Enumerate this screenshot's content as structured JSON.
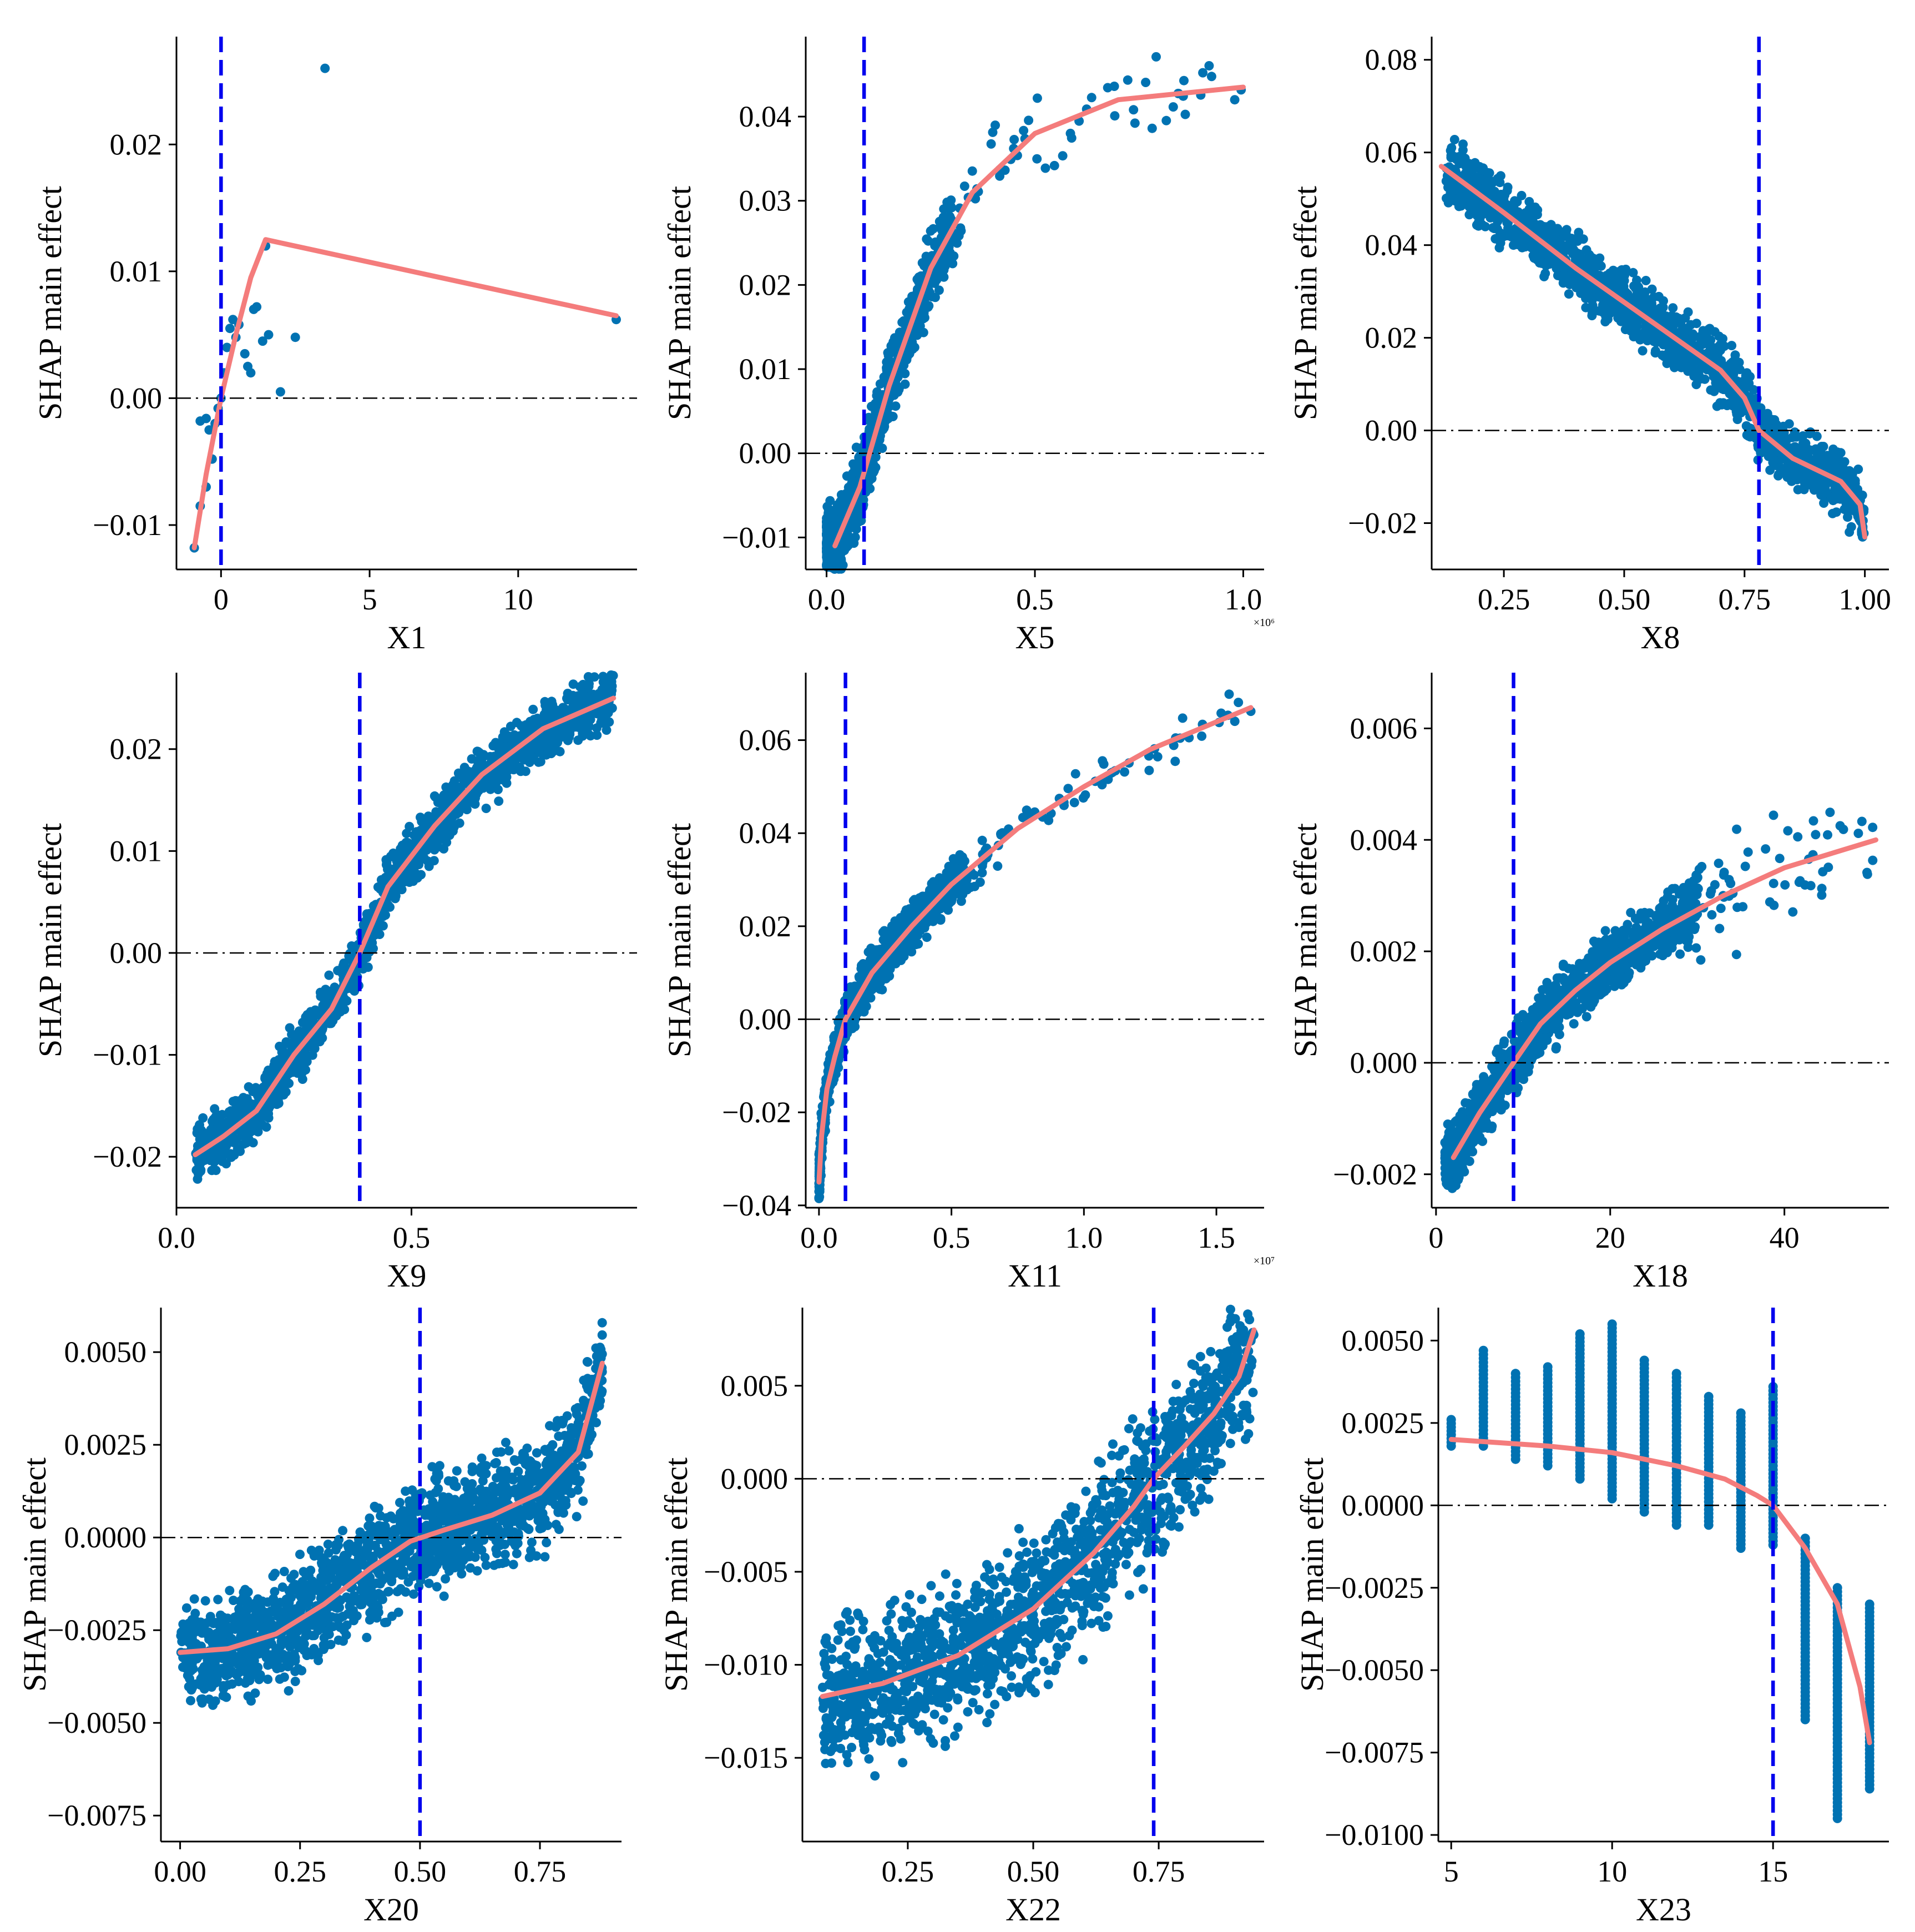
{
  "figure": {
    "colors": {
      "points": "#0072B2",
      "curve": "#F47C7C",
      "threshold": "#0000EE",
      "zero_line": "#000000",
      "axes": "#000000"
    }
  },
  "chart_data": [
    {
      "type": "scatter",
      "xlabel": "X1",
      "ylabel": "SHAP main effect",
      "xlim": [
        -1.5,
        14.0
      ],
      "ylim": [
        -0.0135,
        0.0285
      ],
      "xticks": [
        0,
        5,
        10
      ],
      "xtick_labels": [
        "0",
        "5",
        "10"
      ],
      "yticks": [
        -0.01,
        0.0,
        0.01,
        0.02
      ],
      "ytick_labels": [
        "−0.01",
        "0.00",
        "0.01",
        "0.02"
      ],
      "threshold_x": 0.0,
      "x_exponent": "",
      "curve": [
        [
          -0.9,
          -0.0118
        ],
        [
          -0.5,
          -0.006
        ],
        [
          0.0,
          0.0
        ],
        [
          0.5,
          0.005
        ],
        [
          1.0,
          0.0095
        ],
        [
          1.5,
          0.0125
        ],
        [
          13.3,
          0.0065
        ]
      ],
      "points": {
        "mode": "manual",
        "items": [
          [
            -0.9,
            -0.0118
          ],
          [
            -0.7,
            -0.0085
          ],
          [
            -0.5,
            -0.007
          ],
          [
            -0.7,
            -0.0018
          ],
          [
            -0.5,
            -0.0016
          ],
          [
            -0.4,
            -0.0025
          ],
          [
            -0.3,
            -0.0048
          ],
          [
            -0.2,
            -0.002
          ],
          [
            -0.1,
            -0.0008
          ],
          [
            0.0,
            0.0
          ],
          [
            0.1,
            0.002
          ],
          [
            0.2,
            0.004
          ],
          [
            0.3,
            0.0055
          ],
          [
            0.4,
            0.0062
          ],
          [
            0.5,
            0.0048
          ],
          [
            0.6,
            0.0058
          ],
          [
            0.8,
            0.0035
          ],
          [
            0.9,
            0.0025
          ],
          [
            1.0,
            0.002
          ],
          [
            1.1,
            0.007
          ],
          [
            1.2,
            0.0072
          ],
          [
            1.4,
            0.0045
          ],
          [
            1.5,
            0.012
          ],
          [
            1.6,
            0.005
          ],
          [
            2.0,
            0.0005
          ],
          [
            2.5,
            0.0048
          ],
          [
            3.5,
            0.026
          ],
          [
            13.3,
            0.0062
          ]
        ]
      }
    },
    {
      "type": "scatter",
      "xlabel": "X5",
      "ylabel": "SHAP main effect",
      "xlim": [
        -0.05,
        1.05
      ],
      "ylim": [
        -0.0138,
        0.0495
      ],
      "xticks": [
        0.0,
        0.5,
        1.0
      ],
      "xtick_labels": [
        "0.0",
        "0.5",
        "1.0"
      ],
      "yticks": [
        -0.01,
        0.0,
        0.01,
        0.02,
        0.03,
        0.04
      ],
      "ytick_labels": [
        "−0.01",
        "0.00",
        "0.01",
        "0.02",
        "0.03",
        "0.04"
      ],
      "threshold_x": 0.09,
      "x_exponent": "×10⁶",
      "curve": [
        [
          0.02,
          -0.011
        ],
        [
          0.08,
          -0.004
        ],
        [
          0.15,
          0.008
        ],
        [
          0.25,
          0.022
        ],
        [
          0.35,
          0.031
        ],
        [
          0.5,
          0.038
        ],
        [
          0.7,
          0.042
        ],
        [
          1.0,
          0.0435
        ]
      ],
      "points": {
        "mode": "band",
        "seed": 5,
        "count": 1300,
        "x_range": [
          0.0,
          0.3
        ],
        "x_power": 1.8,
        "spread": 0.0035,
        "tail": {
          "count": 60,
          "x_range": [
            0.3,
            1.0
          ],
          "x_power": 1.6,
          "spread": 0.004
        }
      }
    },
    {
      "type": "scatter",
      "xlabel": "X8",
      "ylabel": "SHAP main effect",
      "xlim": [
        0.1,
        1.05
      ],
      "ylim": [
        -0.03,
        0.085
      ],
      "xticks": [
        0.25,
        0.5,
        0.75,
        1.0
      ],
      "xtick_labels": [
        "0.25",
        "0.50",
        "0.75",
        "1.00"
      ],
      "yticks": [
        -0.02,
        0.0,
        0.02,
        0.04,
        0.06,
        0.08
      ],
      "ytick_labels": [
        "−0.02",
        "0.00",
        "0.02",
        "0.04",
        "0.06",
        "0.08"
      ],
      "threshold_x": 0.78,
      "x_exponent": "",
      "curve": [
        [
          0.12,
          0.057
        ],
        [
          0.25,
          0.047
        ],
        [
          0.4,
          0.035
        ],
        [
          0.55,
          0.024
        ],
        [
          0.7,
          0.013
        ],
        [
          0.75,
          0.007
        ],
        [
          0.78,
          0.0
        ],
        [
          0.85,
          -0.006
        ],
        [
          0.95,
          -0.011
        ],
        [
          0.99,
          -0.016
        ],
        [
          1.0,
          -0.023
        ]
      ],
      "points": {
        "mode": "band",
        "seed": 8,
        "count": 1500,
        "x_range": [
          0.13,
          1.0
        ],
        "x_power": 1.0,
        "spread": 0.0055,
        "clip_x": 1.0
      }
    },
    {
      "type": "scatter",
      "xlabel": "X9",
      "ylabel": "SHAP main effect",
      "xlim": [
        0.0,
        0.98
      ],
      "ylim": [
        -0.025,
        0.0275
      ],
      "xticks": [
        0.0,
        0.5
      ],
      "xtick_labels": [
        "0.0",
        "0.5"
      ],
      "yticks": [
        -0.02,
        -0.01,
        0.0,
        0.01,
        0.02
      ],
      "ytick_labels": [
        "−0.02",
        "−0.01",
        "0.00",
        "0.01",
        "0.02"
      ],
      "threshold_x": 0.39,
      "x_exponent": "",
      "curve": [
        [
          0.04,
          -0.0198
        ],
        [
          0.1,
          -0.018
        ],
        [
          0.17,
          -0.0155
        ],
        [
          0.25,
          -0.01
        ],
        [
          0.33,
          -0.0055
        ],
        [
          0.39,
          0.0
        ],
        [
          0.45,
          0.0065
        ],
        [
          0.55,
          0.0125
        ],
        [
          0.65,
          0.0175
        ],
        [
          0.78,
          0.022
        ],
        [
          0.93,
          0.025
        ]
      ],
      "points": {
        "mode": "band",
        "seed": 9,
        "count": 1500,
        "x_range": [
          0.04,
          0.93
        ],
        "x_power": 1.0,
        "spread": 0.0023
      }
    },
    {
      "type": "scatter",
      "xlabel": "X11",
      "ylabel": "SHAP main effect",
      "xlim": [
        -0.05,
        1.68
      ],
      "ylim": [
        -0.0405,
        0.0745
      ],
      "xticks": [
        0.0,
        0.5,
        1.0,
        1.5
      ],
      "xtick_labels": [
        "0.0",
        "0.5",
        "1.0",
        "1.5"
      ],
      "yticks": [
        -0.04,
        -0.02,
        0.0,
        0.02,
        0.04,
        0.06
      ],
      "ytick_labels": [
        "−0.04",
        "−0.02",
        "0.00",
        "0.02",
        "0.04",
        "0.06"
      ],
      "threshold_x": 0.1,
      "x_exponent": "×10⁷",
      "curve": [
        [
          0.0,
          -0.035
        ],
        [
          0.01,
          -0.025
        ],
        [
          0.03,
          -0.015
        ],
        [
          0.06,
          -0.008
        ],
        [
          0.1,
          0.0
        ],
        [
          0.2,
          0.01
        ],
        [
          0.35,
          0.02
        ],
        [
          0.5,
          0.029
        ],
        [
          0.75,
          0.041
        ],
        [
          1.0,
          0.05
        ],
        [
          1.25,
          0.058
        ],
        [
          1.63,
          0.067
        ]
      ],
      "points": {
        "mode": "band",
        "seed": 11,
        "count": 1200,
        "x_range": [
          0.0,
          0.55
        ],
        "x_power": 1.6,
        "spread": 0.004,
        "tail": {
          "count": 70,
          "x_range": [
            0.55,
            1.63
          ],
          "x_power": 1.3,
          "spread": 0.004
        }
      }
    },
    {
      "type": "scatter",
      "xlabel": "X18",
      "ylabel": "SHAP main effect",
      "xlim": [
        -0.5,
        52.0
      ],
      "ylim": [
        -0.0026,
        0.007
      ],
      "xticks": [
        0,
        20,
        40
      ],
      "xtick_labels": [
        "0",
        "20",
        "40"
      ],
      "yticks": [
        -0.002,
        0.0,
        0.002,
        0.004,
        0.006
      ],
      "ytick_labels": [
        "−0.002",
        "0.000",
        "0.002",
        "0.004",
        "0.006"
      ],
      "threshold_x": 8.9,
      "x_exponent": "",
      "curve": [
        [
          2.0,
          -0.0017
        ],
        [
          5.0,
          -0.0009
        ],
        [
          8.9,
          0.0
        ],
        [
          12.0,
          0.0007
        ],
        [
          16.0,
          0.0013
        ],
        [
          20.0,
          0.0018
        ],
        [
          26.0,
          0.0024
        ],
        [
          33.0,
          0.003
        ],
        [
          40.0,
          0.0035
        ],
        [
          50.5,
          0.004
        ]
      ],
      "points": {
        "mode": "band",
        "seed": 18,
        "count": 1300,
        "x_range": [
          1.0,
          30.0
        ],
        "x_power": 1.3,
        "spread": 0.00045,
        "tail": {
          "count": 60,
          "x_range": [
            30.0,
            50.5
          ],
          "x_power": 1.4,
          "spread": 0.0009
        }
      }
    },
    {
      "type": "scatter",
      "xlabel": "X20",
      "ylabel": "SHAP main effect",
      "xlim": [
        -0.04,
        0.92
      ],
      "ylim": [
        -0.0082,
        0.0062
      ],
      "xticks": [
        0.0,
        0.25,
        0.5,
        0.75
      ],
      "xtick_labels": [
        "0.00",
        "0.25",
        "0.50",
        "0.75"
      ],
      "yticks": [
        -0.0075,
        -0.005,
        -0.0025,
        0.0,
        0.0025,
        0.005
      ],
      "ytick_labels": [
        "−0.0075",
        "−0.0050",
        "−0.0025",
        "0.0000",
        "0.0025",
        "0.0050"
      ],
      "threshold_x": 0.5,
      "x_exponent": "",
      "curve": [
        [
          0.0,
          -0.0031
        ],
        [
          0.1,
          -0.003
        ],
        [
          0.2,
          -0.0026
        ],
        [
          0.3,
          -0.0018
        ],
        [
          0.4,
          -0.0008
        ],
        [
          0.48,
          -0.0001
        ],
        [
          0.55,
          0.0002
        ],
        [
          0.65,
          0.0006
        ],
        [
          0.75,
          0.0012
        ],
        [
          0.83,
          0.0023
        ],
        [
          0.88,
          0.0047
        ]
      ],
      "points": {
        "mode": "band",
        "seed": 20,
        "count": 1700,
        "x_range": [
          0.0,
          0.88
        ],
        "x_power": 1.0,
        "spread": 0.0012
      }
    },
    {
      "type": "scatter",
      "xlabel": "X22",
      "ylabel": "SHAP main effect",
      "xlim": [
        0.04,
        0.96
      ],
      "ylim": [
        -0.0195,
        0.0092
      ],
      "xticks": [
        0.25,
        0.5,
        0.75
      ],
      "xtick_labels": [
        "0.25",
        "0.50",
        "0.75"
      ],
      "yticks": [
        -0.015,
        -0.01,
        -0.005,
        0.0,
        0.005
      ],
      "ytick_labels": [
        "−0.015",
        "−0.010",
        "−0.005",
        "0.000",
        "0.005"
      ],
      "threshold_x": 0.74,
      "x_exponent": "",
      "curve": [
        [
          0.08,
          -0.0117
        ],
        [
          0.2,
          -0.011
        ],
        [
          0.35,
          -0.0095
        ],
        [
          0.5,
          -0.007
        ],
        [
          0.62,
          -0.004
        ],
        [
          0.7,
          -0.0015
        ],
        [
          0.74,
          0.0
        ],
        [
          0.8,
          0.0017
        ],
        [
          0.86,
          0.0035
        ],
        [
          0.91,
          0.0055
        ],
        [
          0.94,
          0.008
        ]
      ],
      "points": {
        "mode": "band",
        "seed": 22,
        "count": 1500,
        "x_range": [
          0.08,
          0.94
        ],
        "x_power": 1.0,
        "spread": 0.0034
      }
    },
    {
      "type": "scatter",
      "xlabel": "X23",
      "ylabel": "SHAP main effect",
      "xlim": [
        4.6,
        18.6
      ],
      "ylim": [
        -0.0102,
        0.006
      ],
      "xticks": [
        5,
        10,
        15
      ],
      "xtick_labels": [
        "5",
        "10",
        "15"
      ],
      "yticks": [
        -0.01,
        -0.0075,
        -0.005,
        -0.0025,
        0.0,
        0.0025,
        0.005
      ],
      "ytick_labels": [
        "−0.0100",
        "−0.0075",
        "−0.0050",
        "−0.0025",
        "0.0000",
        "0.0025",
        "0.0050"
      ],
      "threshold_x": 15.0,
      "x_exponent": "",
      "curve": [
        [
          5.0,
          0.002
        ],
        [
          8.0,
          0.0018
        ],
        [
          10.0,
          0.0016
        ],
        [
          12.0,
          0.0012
        ],
        [
          13.5,
          0.0008
        ],
        [
          14.5,
          0.0003
        ],
        [
          15.0,
          0.0
        ],
        [
          16.0,
          -0.0013
        ],
        [
          17.0,
          -0.003
        ],
        [
          17.7,
          -0.0055
        ],
        [
          18.0,
          -0.0072
        ]
      ],
      "points": {
        "mode": "columns",
        "columns": [
          {
            "x": 5,
            "lo": 0.0018,
            "hi": 0.0026
          },
          {
            "x": 6,
            "lo": 0.0018,
            "hi": 0.0047
          },
          {
            "x": 7,
            "lo": 0.0014,
            "hi": 0.004
          },
          {
            "x": 8,
            "lo": 0.0012,
            "hi": 0.0042
          },
          {
            "x": 9,
            "lo": 0.0008,
            "hi": 0.0052
          },
          {
            "x": 10,
            "lo": 0.0002,
            "hi": 0.0055
          },
          {
            "x": 11,
            "lo": -0.0002,
            "hi": 0.0044
          },
          {
            "x": 12,
            "lo": -0.0006,
            "hi": 0.004
          },
          {
            "x": 13,
            "lo": -0.0006,
            "hi": 0.0033
          },
          {
            "x": 14,
            "lo": -0.0013,
            "hi": 0.0028
          },
          {
            "x": 15,
            "lo": -0.0012,
            "hi": 0.0036
          },
          {
            "x": 16,
            "lo": -0.0065,
            "hi": -0.001
          },
          {
            "x": 17,
            "lo": -0.0095,
            "hi": -0.0025
          },
          {
            "x": 18,
            "lo": -0.0086,
            "hi": -0.003
          }
        ]
      }
    }
  ]
}
